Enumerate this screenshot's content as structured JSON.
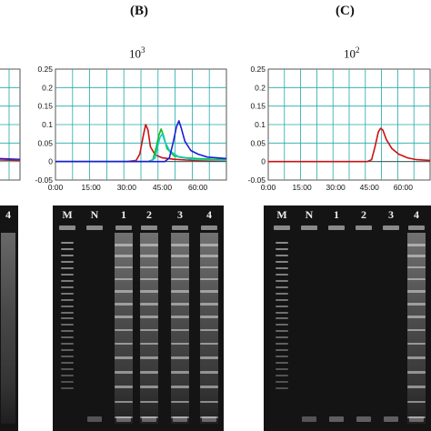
{
  "panels": [
    {
      "letter": "(B)",
      "concentration_base": "10",
      "concentration_exp": "3",
      "chart_data": {
        "type": "line",
        "xlabel": "",
        "ylabel": "",
        "x_tick_labels": [
          "0:00",
          "15:00",
          "30:00",
          "45:00",
          "60:00"
        ],
        "y_tick_labels": [
          "0.25",
          "0.2",
          "0.15",
          "0.1",
          "0.05",
          "0",
          "-0.05"
        ],
        "ylim": [
          -0.05,
          0.25
        ],
        "xlim_minutes": [
          0,
          72
        ],
        "grid": true,
        "series": [
          {
            "color": "#cc1111",
            "x_minutes": [
              0,
              30,
              34,
              35.5,
              37,
              38,
              39,
              40,
              42,
              45,
              50,
              55,
              60,
              66,
              72
            ],
            "y": [
              0,
              0,
              0.003,
              0.02,
              0.07,
              0.1,
              0.085,
              0.04,
              0.018,
              0.01,
              0.006,
              0.004,
              0.003,
              0.002,
              0.002
            ]
          },
          {
            "color": "#19b819",
            "x_minutes": [
              0,
              39,
              41,
              42.5,
              43.5,
              44.5,
              45.5,
              47,
              50,
              55,
              60,
              66,
              72
            ],
            "y": [
              0,
              0,
              0.005,
              0.04,
              0.07,
              0.088,
              0.07,
              0.035,
              0.015,
              0.01,
              0.008,
              0.006,
              0.005
            ]
          },
          {
            "color": "#13cccc",
            "x_minutes": [
              0,
              40,
              42,
              43,
              44,
              45,
              46,
              48,
              52,
              58,
              64,
              72
            ],
            "y": [
              0,
              0,
              0.01,
              0.04,
              0.065,
              0.075,
              0.055,
              0.03,
              0.012,
              0.006,
              0.004,
              0.003
            ]
          },
          {
            "color": "#1c1cd8",
            "x_minutes": [
              0,
              46,
              48,
              49.5,
              51,
              52,
              53,
              54.5,
              57,
              60,
              64,
              68,
              72
            ],
            "y": [
              0,
              0,
              0.01,
              0.05,
              0.095,
              0.11,
              0.09,
              0.055,
              0.03,
              0.02,
              0.012,
              0.01,
              0.008
            ]
          }
        ]
      },
      "gel": {
        "lane_labels": [
          "M",
          "N",
          "1",
          "2",
          "3",
          "4"
        ]
      }
    },
    {
      "letter": "(C)",
      "concentration_base": "10",
      "concentration_exp": "2",
      "chart_data": {
        "type": "line",
        "xlabel": "",
        "ylabel": "",
        "x_tick_labels": [
          "0:00",
          "15:00",
          "30:00",
          "45:00",
          "60:00"
        ],
        "y_tick_labels": [
          "0.25",
          "0.2",
          "0.15",
          "0.1",
          "0.05",
          "0",
          "-0.05"
        ],
        "ylim": [
          -0.05,
          0.25
        ],
        "xlim_minutes": [
          0,
          72
        ],
        "grid": true,
        "series": [
          {
            "color": "#cc1111",
            "x_minutes": [
              0,
              44,
              46,
              47.5,
              49,
              50,
              51,
              52.5,
              55,
              58,
              62,
              66,
              72
            ],
            "y": [
              0,
              0,
              0.005,
              0.04,
              0.08,
              0.09,
              0.085,
              0.06,
              0.035,
              0.02,
              0.01,
              0.005,
              0.003
            ]
          }
        ]
      },
      "gel": {
        "lane_labels": [
          "M",
          "N",
          "1",
          "2",
          "3",
          "4"
        ]
      }
    }
  ],
  "panel_a_partial": {
    "chart_data": {
      "type": "line",
      "ylim": [
        -0.05,
        0.25
      ],
      "grid": true,
      "series": [
        {
          "color": "#1c1cd8",
          "x_minutes": [
            0,
            72
          ],
          "y": [
            0.008,
            0.006
          ]
        },
        {
          "color": "#cc1111",
          "x_minutes": [
            0,
            72
          ],
          "y": [
            0.004,
            0.003
          ]
        }
      ]
    },
    "gel": {
      "lane_labels": [
        "4"
      ]
    }
  }
}
